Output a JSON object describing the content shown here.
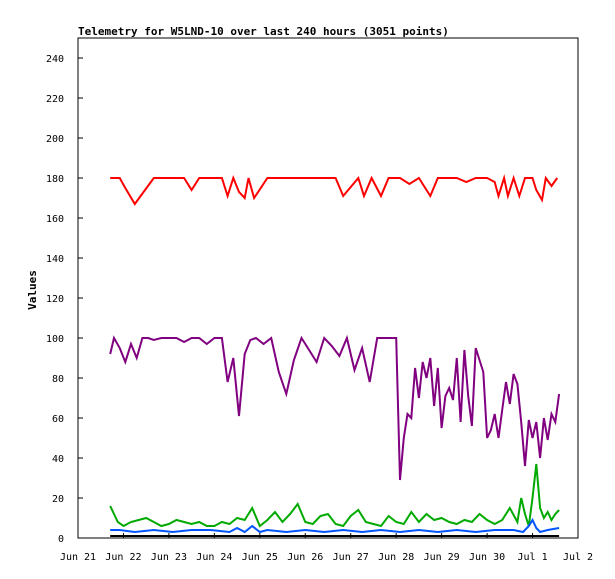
{
  "chart_data": {
    "type": "line",
    "title": "Telemetry for W5LND-10 over last 240 hours (3051 points)",
    "xlabel": "",
    "ylabel": "Values",
    "ylim": [
      0,
      250
    ],
    "y_ticks": [
      0,
      20,
      40,
      60,
      80,
      100,
      120,
      140,
      160,
      180,
      200,
      220,
      240
    ],
    "xlim": [
      0,
      264
    ],
    "x_ticks": [
      {
        "label": "Jun 21",
        "x": 0
      },
      {
        "label": "Jun 22",
        "x": 24
      },
      {
        "label": "Jun 23",
        "x": 48
      },
      {
        "label": "Jun 24",
        "x": 72
      },
      {
        "label": "Jun 25",
        "x": 96
      },
      {
        "label": "Jun 26",
        "x": 120
      },
      {
        "label": "Jun 27",
        "x": 144
      },
      {
        "label": "Jun 28",
        "x": 168
      },
      {
        "label": "Jun 29",
        "x": 192
      },
      {
        "label": "Jun 30",
        "x": 216
      },
      {
        "label": "Jul 1",
        "x": 240
      },
      {
        "label": "Jul 2",
        "x": 264
      }
    ],
    "x_unit": "hours since Jun 21 00:00",
    "grid": false,
    "series": [
      {
        "color": "#ff0000",
        "x": [
          17,
          22,
          25,
          30,
          40,
          50,
          56,
          60,
          64,
          68,
          72,
          76,
          79,
          82,
          85,
          88,
          90,
          93,
          100,
          108,
          115,
          122,
          130,
          136,
          140,
          148,
          151,
          155,
          160,
          164,
          168,
          170,
          175,
          180,
          186,
          190,
          196,
          200,
          205,
          210,
          216,
          220,
          222,
          225,
          227,
          230,
          233,
          236,
          240,
          242,
          245,
          247,
          250,
          253
        ],
        "y": [
          180,
          180,
          175,
          167,
          180,
          180,
          180,
          174,
          180,
          180,
          180,
          180,
          171,
          180,
          173,
          170,
          180,
          170,
          180,
          180,
          180,
          180,
          180,
          180,
          171,
          180,
          171,
          180,
          171,
          180,
          180,
          180,
          177,
          180,
          171,
          180,
          180,
          180,
          178,
          180,
          180,
          178,
          171,
          180,
          171,
          180,
          171,
          180,
          180,
          174,
          169,
          180,
          176,
          180
        ]
      },
      {
        "color": "#800080",
        "x": [
          17,
          19,
          22,
          25,
          28,
          31,
          34,
          37,
          40,
          44,
          48,
          52,
          56,
          60,
          64,
          68,
          72,
          76,
          79,
          82,
          85,
          88,
          91,
          94,
          98,
          102,
          106,
          110,
          114,
          118,
          122,
          126,
          130,
          134,
          138,
          142,
          146,
          150,
          154,
          158,
          162,
          166,
          168,
          170,
          172,
          174,
          176,
          178,
          180,
          182,
          184,
          186,
          188,
          190,
          192,
          194,
          196,
          198,
          200,
          202,
          204,
          206,
          208,
          210,
          212,
          214,
          216,
          218,
          220,
          222,
          224,
          226,
          228,
          230,
          232,
          234,
          236,
          238,
          240,
          242,
          244,
          246,
          248,
          250,
          252,
          254
        ],
        "y": [
          92,
          100,
          95,
          88,
          97,
          90,
          100,
          100,
          99,
          100,
          100,
          100,
          98,
          100,
          100,
          97,
          100,
          100,
          78,
          90,
          61,
          92,
          99,
          100,
          97,
          100,
          83,
          72,
          89,
          100,
          94,
          88,
          100,
          96,
          91,
          100,
          84,
          95,
          78,
          100,
          100,
          100,
          100,
          29,
          50,
          62,
          60,
          85,
          70,
          88,
          80,
          90,
          66,
          85,
          55,
          71,
          75,
          69,
          90,
          58,
          94,
          71,
          56,
          95,
          89,
          83,
          50,
          54,
          62,
          50,
          64,
          78,
          67,
          82,
          77,
          58,
          36,
          59,
          50,
          58,
          40,
          60,
          49,
          62,
          58,
          72
        ]
      },
      {
        "color": "#00aa00",
        "x": [
          17,
          19,
          21,
          24,
          28,
          32,
          36,
          40,
          44,
          48,
          52,
          56,
          60,
          64,
          68,
          72,
          76,
          80,
          84,
          88,
          92,
          96,
          100,
          104,
          108,
          112,
          116,
          120,
          124,
          128,
          132,
          136,
          140,
          144,
          148,
          152,
          156,
          160,
          164,
          168,
          172,
          176,
          180,
          184,
          188,
          192,
          196,
          200,
          204,
          208,
          212,
          216,
          220,
          224,
          228,
          232,
          234,
          236,
          238,
          240,
          242,
          244,
          246,
          248,
          250,
          252,
          254
        ],
        "y": [
          16,
          12,
          8,
          6,
          8,
          9,
          10,
          8,
          6,
          7,
          9,
          8,
          7,
          8,
          6,
          6,
          8,
          7,
          10,
          9,
          15,
          6,
          9,
          13,
          8,
          12,
          17,
          8,
          7,
          11,
          12,
          7,
          6,
          11,
          14,
          8,
          7,
          6,
          11,
          8,
          7,
          13,
          8,
          12,
          9,
          10,
          8,
          7,
          9,
          8,
          12,
          9,
          7,
          9,
          15,
          8,
          20,
          12,
          6,
          20,
          37,
          15,
          10,
          13,
          9,
          12,
          14
        ]
      },
      {
        "color": "#0055ff",
        "x": [
          17,
          22,
          30,
          40,
          50,
          60,
          70,
          80,
          84,
          88,
          92,
          96,
          100,
          110,
          120,
          130,
          140,
          150,
          160,
          170,
          180,
          190,
          200,
          210,
          220,
          230,
          235,
          238,
          240,
          242,
          244,
          248,
          254
        ],
        "y": [
          4,
          4,
          3,
          4,
          3,
          4,
          4,
          3,
          5,
          3,
          6,
          3,
          4,
          3,
          4,
          3,
          4,
          3,
          4,
          3,
          4,
          3,
          4,
          3,
          4,
          4,
          3,
          6,
          9,
          5,
          3,
          4,
          5
        ]
      },
      {
        "color": "#000000",
        "x": [
          17,
          254
        ],
        "y": [
          1,
          1
        ]
      }
    ]
  }
}
